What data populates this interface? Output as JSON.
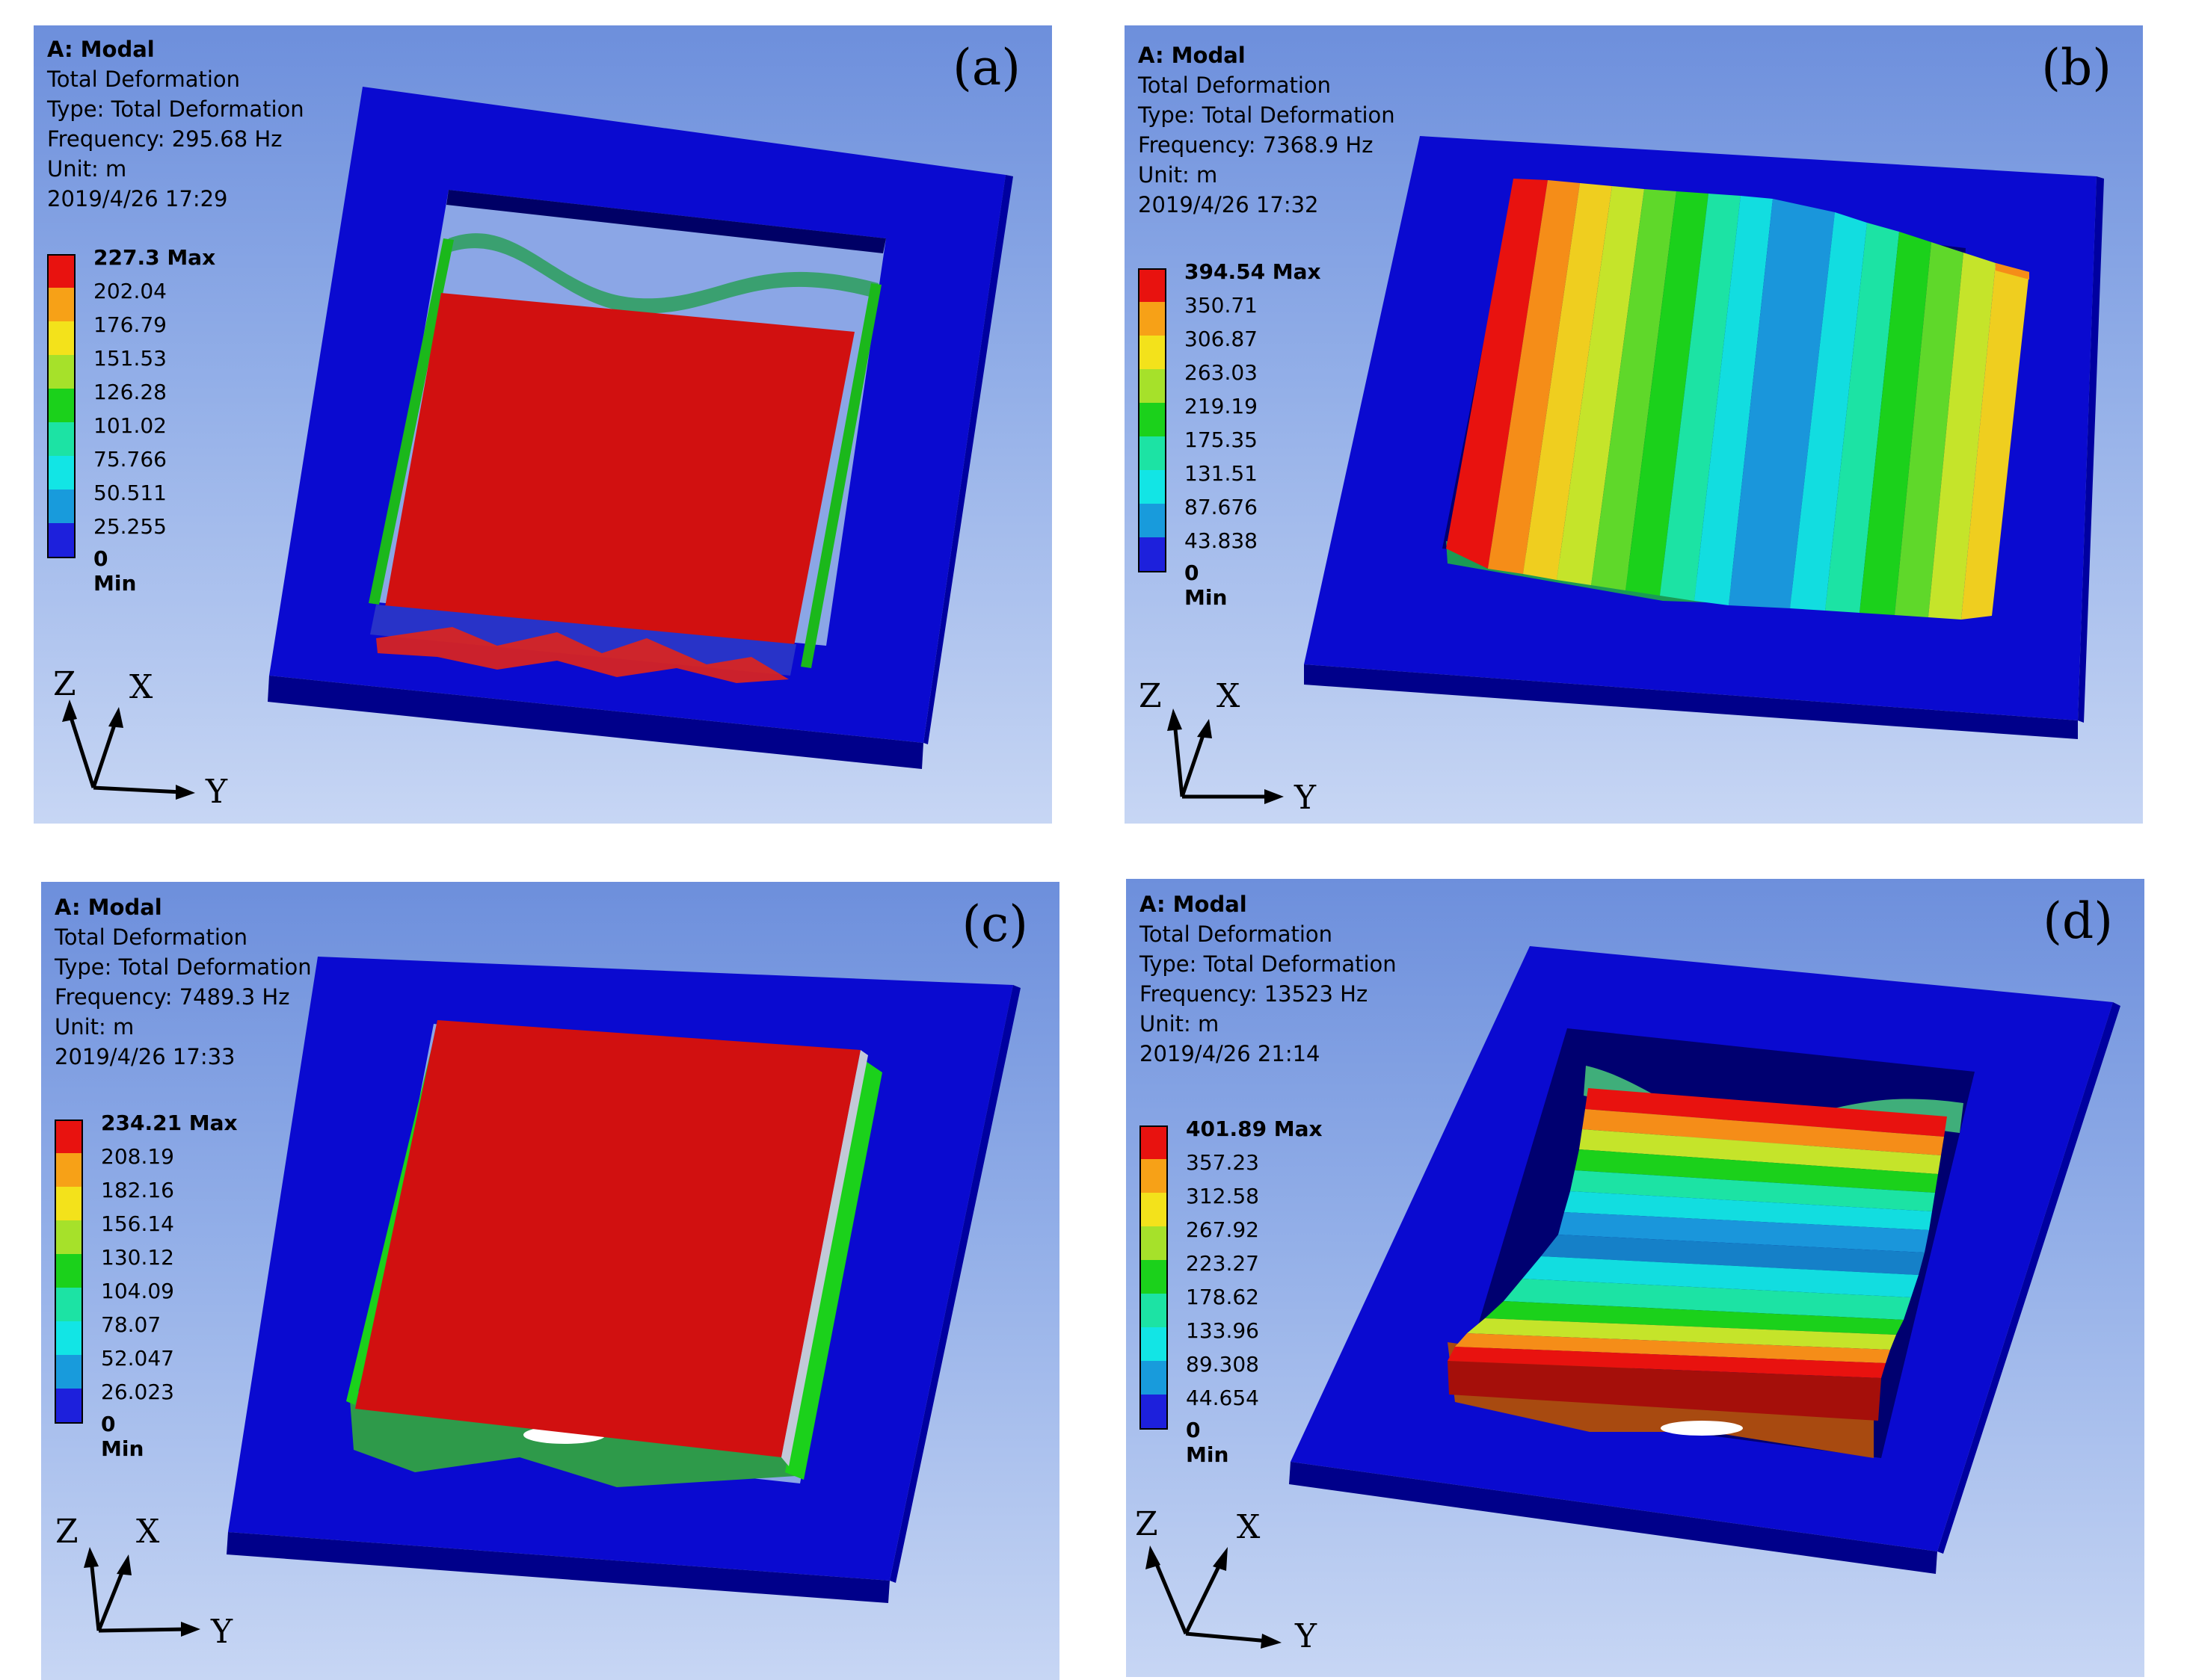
{
  "legend_colors": [
    "#e8120f",
    "#f7a117",
    "#f3e21b",
    "#a6e12a",
    "#1bd11b",
    "#1ce3a4",
    "#12e5e5",
    "#189bdc",
    "#1d20dc"
  ],
  "panels": [
    {
      "letter": "(a)",
      "title": "A: Modal",
      "result": "Total Deformation",
      "type": "Type: Total Deformation",
      "frequency": "Frequency: 295.68 Hz",
      "unit": "Unit: m",
      "date": "2019/4/26 17:29",
      "legend_max": "227.3 Max",
      "legend_values": [
        "202.04",
        "176.79",
        "151.53",
        "126.28",
        "101.02",
        "75.766",
        "50.511",
        "25.255"
      ],
      "legend_min": "0 Min",
      "axis_labels": {
        "z": "Z",
        "x": "X",
        "y": "Y"
      }
    },
    {
      "letter": "(b)",
      "title": "A: Modal",
      "result": "Total Deformation",
      "type": "Type: Total Deformation",
      "frequency": "Frequency: 7368.9 Hz",
      "unit": "Unit: m",
      "date": "2019/4/26 17:32",
      "legend_max": "394.54 Max",
      "legend_values": [
        "350.71",
        "306.87",
        "263.03",
        "219.19",
        "175.35",
        "131.51",
        "87.676",
        "43.838"
      ],
      "legend_min": "0 Min",
      "axis_labels": {
        "z": "Z",
        "x": "X",
        "y": "Y"
      }
    },
    {
      "letter": "(c)",
      "title": "A: Modal",
      "result": "Total Deformation",
      "type": "Type: Total Deformation",
      "frequency": "Frequency: 7489.3 Hz",
      "unit": "Unit: m",
      "date": "2019/4/26 17:33",
      "legend_max": "234.21 Max",
      "legend_values": [
        "208.19",
        "182.16",
        "156.14",
        "130.12",
        "104.09",
        "78.07",
        "52.047",
        "26.023"
      ],
      "legend_min": "0 Min",
      "axis_labels": {
        "z": "Z",
        "x": "X",
        "y": "Y"
      }
    },
    {
      "letter": "(d)",
      "title": "A: Modal",
      "result": "Total Deformation",
      "type": "Type: Total Deformation",
      "frequency": "Frequency: 13523 Hz",
      "unit": "Unit: m",
      "date": "2019/4/26 21:14",
      "legend_max": "401.89 Max",
      "legend_values": [
        "357.23",
        "312.58",
        "267.92",
        "223.27",
        "178.62",
        "133.96",
        "89.308",
        "44.654"
      ],
      "legend_min": "0 Min",
      "axis_labels": {
        "z": "Z",
        "x": "X",
        "y": "Y"
      }
    }
  ]
}
